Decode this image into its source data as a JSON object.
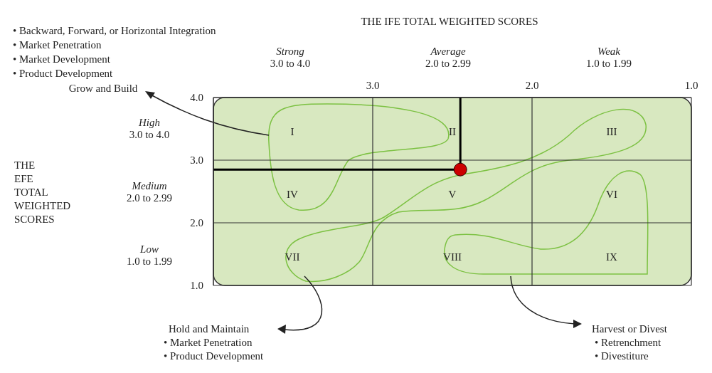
{
  "chart_data": {
    "type": "scatter",
    "title": "THE IFE TOTAL WEIGHTED SCORES",
    "x": [
      2.45
    ],
    "series": [
      {
        "color": "#cc0000",
        "values": [
          2.85
        ]
      }
    ],
    "xlim": [
      4,
      1
    ],
    "xticks": [
      {
        "value": 4,
        "label": null
      },
      {
        "value": 3,
        "label": "3.0"
      },
      {
        "value": 2,
        "label": "2.0"
      },
      {
        "value": 1,
        "label": "1.0"
      }
    ],
    "ylim": [
      1,
      4
    ],
    "yticks": [
      {
        "value": 1,
        "label": "1.0"
      },
      {
        "value": 2,
        "label": "2.0"
      },
      {
        "value": 3,
        "label": "3.0"
      },
      {
        "value": 4,
        "label": "4.0"
      }
    ],
    "grid": true,
    "marker": "circle",
    "ref_lines": [
      {
        "axis": "x",
        "value": 2.45,
        "color": "#000000"
      },
      {
        "axis": "y",
        "value": 2.85,
        "color": "#000000"
      }
    ],
    "annotations": [
      "Strong",
      "3.0 to 4.0",
      "Average",
      "2.0 to 2.99",
      "Weak",
      "1.0 to 1.99",
      "High",
      "3.0 to 4.0",
      "Medium",
      "2.0 to 2.99",
      "Low",
      "1.0 to 1.99",
      "• Backward, Forward, or Horizontal Integration",
      "• Market Penetration",
      "• Market Development",
      "• Product Development",
      "Grow and Build",
      "Hold and Maintain",
      "• Market Penetration",
      "• Product Development",
      "Harvest or Divest",
      "• Retrenchment",
      "• Divestiture",
      "I",
      "II",
      "III",
      "IV",
      "V",
      "VI",
      "VII",
      "VIII",
      "IX",
      "THE EFE TOTAL WEIGHTED SCORES"
    ]
  }
}
